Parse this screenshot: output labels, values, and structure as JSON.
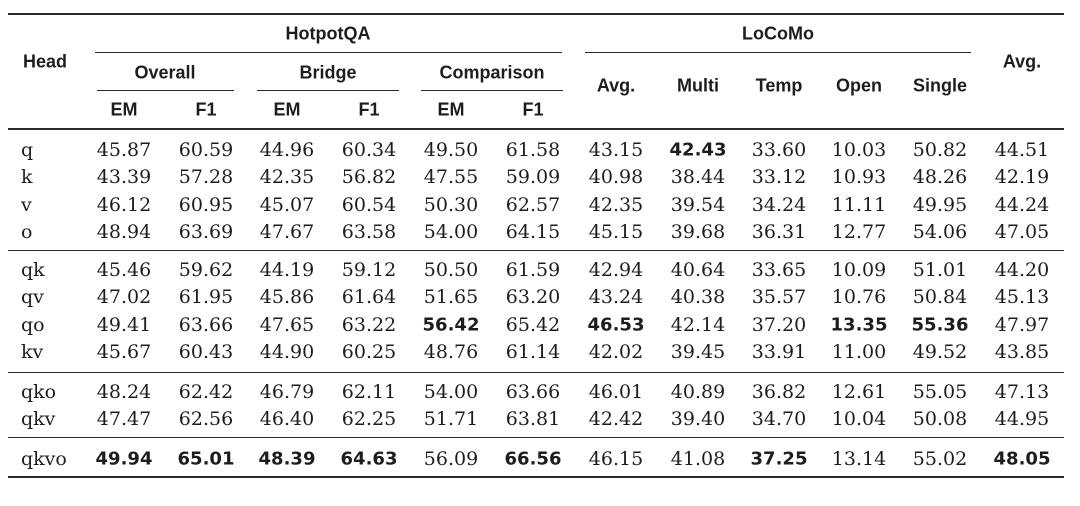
{
  "table": {
    "header": {
      "head": "Head",
      "hotpotqa": "HotpotQA",
      "locomo": "LoCoMo",
      "avg": "Avg.",
      "overall": "Overall",
      "bridge": "Bridge",
      "comparison": "Comparison",
      "em": "EM",
      "f1": "F1",
      "locomo_avg": "Avg.",
      "multi": "Multi",
      "temp": "Temp",
      "open": "Open",
      "single": "Single"
    },
    "row_groups": [
      {
        "rows": [
          {
            "head": "q",
            "values": [
              "45.87",
              "60.59",
              "44.96",
              "60.34",
              "49.50",
              "61.58",
              "43.15",
              "42.43",
              "33.60",
              "10.03",
              "50.82",
              "44.51"
            ],
            "bold": [
              7
            ]
          },
          {
            "head": "k",
            "values": [
              "43.39",
              "57.28",
              "42.35",
              "56.82",
              "47.55",
              "59.09",
              "40.98",
              "38.44",
              "33.12",
              "10.93",
              "48.26",
              "42.19"
            ],
            "bold": []
          },
          {
            "head": "v",
            "values": [
              "46.12",
              "60.95",
              "45.07",
              "60.54",
              "50.30",
              "62.57",
              "42.35",
              "39.54",
              "34.24",
              "11.11",
              "49.95",
              "44.24"
            ],
            "bold": []
          },
          {
            "head": "o",
            "values": [
              "48.94",
              "63.69",
              "47.67",
              "63.58",
              "54.00",
              "64.15",
              "45.15",
              "39.68",
              "36.31",
              "12.77",
              "54.06",
              "47.05"
            ],
            "bold": []
          }
        ]
      },
      {
        "rows": [
          {
            "head": "qk",
            "values": [
              "45.46",
              "59.62",
              "44.19",
              "59.12",
              "50.50",
              "61.59",
              "42.94",
              "40.64",
              "33.65",
              "10.09",
              "51.01",
              "44.20"
            ],
            "bold": []
          },
          {
            "head": "qv",
            "values": [
              "47.02",
              "61.95",
              "45.86",
              "61.64",
              "51.65",
              "63.20",
              "43.24",
              "40.38",
              "35.57",
              "10.76",
              "50.84",
              "45.13"
            ],
            "bold": []
          },
          {
            "head": "qo",
            "values": [
              "49.41",
              "63.66",
              "47.65",
              "63.22",
              "56.42",
              "65.42",
              "46.53",
              "42.14",
              "37.20",
              "13.35",
              "55.36",
              "47.97"
            ],
            "bold": [
              4,
              6,
              9,
              10
            ]
          },
          {
            "head": "kv",
            "values": [
              "45.67",
              "60.43",
              "44.90",
              "60.25",
              "48.76",
              "61.14",
              "42.02",
              "39.45",
              "33.91",
              "11.00",
              "49.52",
              "43.85"
            ],
            "bold": []
          }
        ]
      },
      {
        "rows": [
          {
            "head": "qko",
            "values": [
              "48.24",
              "62.42",
              "46.79",
              "62.11",
              "54.00",
              "63.66",
              "46.01",
              "40.89",
              "36.82",
              "12.61",
              "55.05",
              "47.13"
            ],
            "bold": []
          },
          {
            "head": "qkv",
            "values": [
              "47.47",
              "62.56",
              "46.40",
              "62.25",
              "51.71",
              "63.81",
              "42.42",
              "39.40",
              "34.70",
              "10.04",
              "50.08",
              "44.95"
            ],
            "bold": []
          }
        ]
      },
      {
        "rows": [
          {
            "head": "qkvo",
            "values": [
              "49.94",
              "65.01",
              "48.39",
              "64.63",
              "56.09",
              "66.56",
              "46.15",
              "41.08",
              "37.25",
              "13.14",
              "55.02",
              "48.05"
            ],
            "bold": [
              0,
              1,
              2,
              3,
              5,
              8,
              11
            ]
          }
        ]
      }
    ]
  }
}
